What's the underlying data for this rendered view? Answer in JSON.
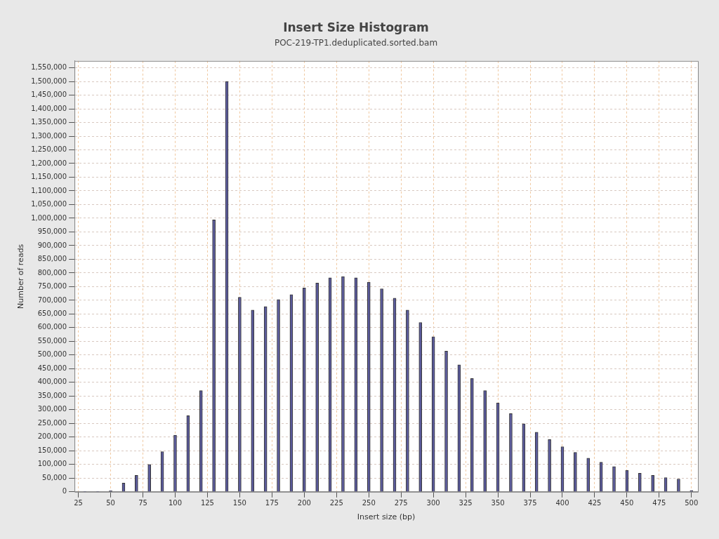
{
  "chart_data": {
    "type": "bar",
    "title": "Insert Size Histogram",
    "subtitle": "POC-219-TP1.deduplicated.sorted.bam",
    "xlabel": "Insert size (bp)",
    "ylabel": "Number of reads",
    "x": [
      30,
      40,
      50,
      60,
      70,
      80,
      90,
      100,
      110,
      120,
      130,
      140,
      150,
      160,
      170,
      180,
      190,
      200,
      210,
      220,
      230,
      240,
      250,
      260,
      270,
      280,
      290,
      300,
      310,
      320,
      330,
      340,
      350,
      360,
      370,
      380,
      390,
      400,
      410,
      420,
      430,
      440,
      450,
      460,
      470,
      480,
      490,
      500
    ],
    "values": [
      1000,
      1000,
      4000,
      32000,
      60000,
      100000,
      147000,
      207000,
      278000,
      370000,
      994000,
      1500000,
      711000,
      664000,
      677000,
      703000,
      721000,
      745000,
      763000,
      782000,
      787000,
      782000,
      766000,
      742000,
      708000,
      664000,
      619000,
      567000,
      514000,
      464000,
      414000,
      370000,
      325000,
      286000,
      249000,
      218000,
      191000,
      165000,
      144000,
      123000,
      108000,
      92000,
      79000,
      68000,
      60000,
      52000,
      47000,
      5000
    ],
    "color": "#5c5c9c",
    "xlim": [
      22,
      505
    ],
    "xticks": [
      25,
      50,
      75,
      100,
      125,
      150,
      175,
      200,
      225,
      250,
      275,
      300,
      325,
      350,
      375,
      400,
      425,
      450,
      475,
      500
    ],
    "ylim": [
      0,
      1575000
    ],
    "yticks": [
      0,
      {
        "value": 50000,
        "label": "50,000"
      },
      {
        "value": 100000,
        "label": "100,000"
      },
      {
        "value": 150000,
        "label": "150,000"
      },
      {
        "value": 200000,
        "label": "200,000"
      },
      {
        "value": 250000,
        "label": "250,000"
      },
      {
        "value": 300000,
        "label": "300,000"
      },
      {
        "value": 350000,
        "label": "350,000"
      },
      {
        "value": 400000,
        "label": "400,000"
      },
      {
        "value": 450000,
        "label": "450,000"
      },
      {
        "value": 500000,
        "label": "500,000"
      },
      {
        "value": 550000,
        "label": "550,000"
      },
      {
        "value": 600000,
        "label": "600,000"
      },
      {
        "value": 650000,
        "label": "650,000"
      },
      {
        "value": 700000,
        "label": "700,000"
      },
      {
        "value": 750000,
        "label": "750,000"
      },
      {
        "value": 800000,
        "label": "800,000"
      },
      {
        "value": 850000,
        "label": "850,000"
      },
      {
        "value": 900000,
        "label": "900,000"
      },
      {
        "value": 950000,
        "label": "950,000"
      },
      {
        "value": 1000000,
        "label": "1,000,000"
      },
      {
        "value": 1050000,
        "label": "1,050,000"
      },
      {
        "value": 1100000,
        "label": "1,100,000"
      },
      {
        "value": 1150000,
        "label": "1,150,000"
      },
      {
        "value": 1200000,
        "label": "1,200,000"
      },
      {
        "value": 1250000,
        "label": "1,250,000"
      },
      {
        "value": 1300000,
        "label": "1,300,000"
      },
      {
        "value": 1350000,
        "label": "1,350,000"
      },
      {
        "value": 1400000,
        "label": "1,400,000"
      },
      {
        "value": 1450000,
        "label": "1,450,000"
      },
      {
        "value": 1500000,
        "label": "1,500,000"
      },
      {
        "value": 1550000,
        "label": "1,550,000"
      }
    ],
    "grid": true
  }
}
